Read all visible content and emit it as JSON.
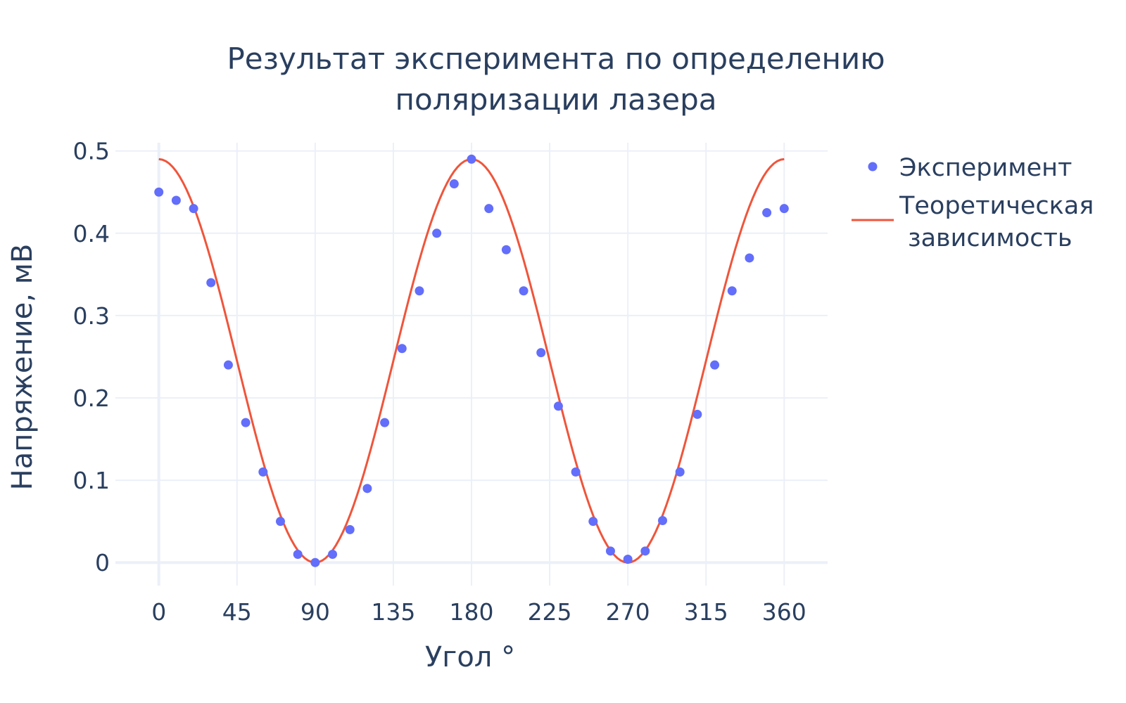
{
  "chart_data": {
    "type": "scatter",
    "title_lines": [
      "Результат эксперимента по определению",
      "поляризации лазера"
    ],
    "xlabel": "Угол °",
    "ylabel": "Напряжение, мВ",
    "xlim": [
      -25,
      385
    ],
    "ylim": [
      -0.028,
      0.51
    ],
    "x_ticks": [
      0,
      45,
      90,
      135,
      180,
      225,
      270,
      315,
      360
    ],
    "y_ticks": [
      0,
      0.1,
      0.2,
      0.3,
      0.4,
      0.5
    ],
    "y_tick_labels": [
      "0",
      "0.1",
      "0.2",
      "0.3",
      "0.4",
      "0.5"
    ],
    "grid": true,
    "legend_position": "top-right",
    "series": [
      {
        "name": "Эксперимент",
        "mode": "markers",
        "color": "#636efa",
        "x": [
          0,
          10,
          20,
          30,
          40,
          50,
          60,
          70,
          80,
          90,
          100,
          110,
          120,
          130,
          140,
          150,
          160,
          170,
          180,
          190,
          200,
          210,
          220,
          230,
          240,
          250,
          260,
          270,
          280,
          290,
          300,
          310,
          320,
          330,
          340,
          350,
          360
        ],
        "y": [
          0.45,
          0.44,
          0.43,
          0.34,
          0.24,
          0.17,
          0.11,
          0.05,
          0.01,
          0.0,
          0.01,
          0.04,
          0.09,
          0.17,
          0.26,
          0.33,
          0.4,
          0.46,
          0.49,
          0.43,
          0.38,
          0.33,
          0.255,
          0.19,
          0.11,
          0.05,
          0.014,
          0.004,
          0.014,
          0.051,
          0.11,
          0.18,
          0.24,
          0.33,
          0.37,
          0.425,
          0.43
        ]
      },
      {
        "name_lines": [
          "Теоретическая",
          "зависимость"
        ],
        "mode": "lines",
        "color": "#ef553b",
        "amplitude": 0.49,
        "function": "amplitude * cos^2(angle)",
        "x_range": [
          0,
          360
        ]
      }
    ]
  }
}
